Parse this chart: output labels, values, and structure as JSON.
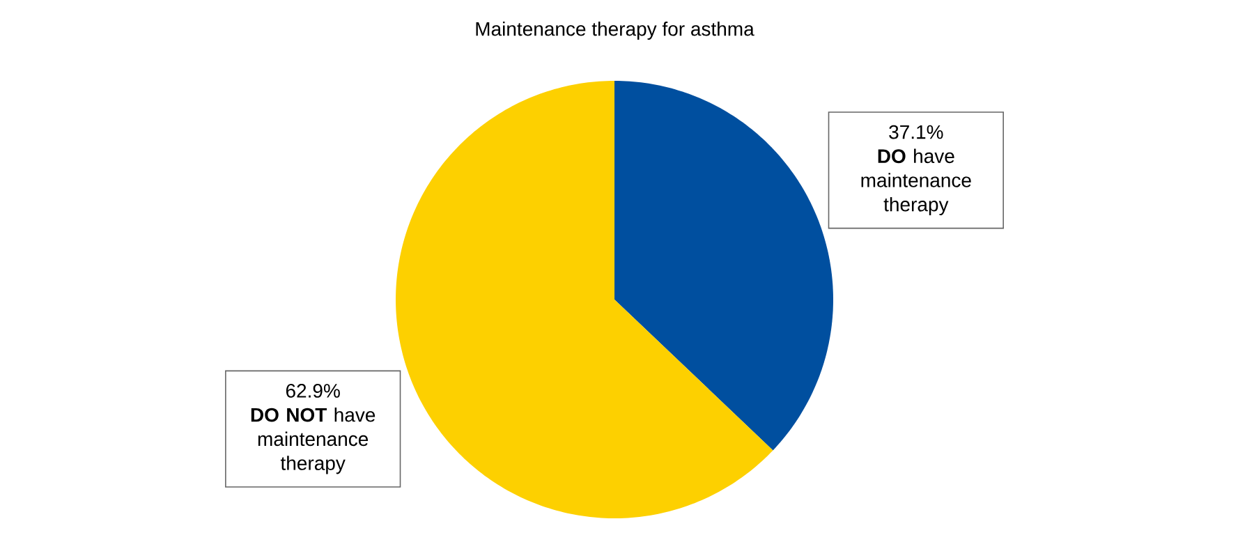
{
  "chart_data": {
    "type": "pie",
    "title": "Maintenance therapy for asthma",
    "categories": [
      "**DO** have maintenance therapy",
      "**DO NOT** have maintenance therapy"
    ],
    "values": [
      37.1,
      62.9
    ],
    "value_labels": [
      "37.1%",
      "62.9%"
    ],
    "colors": [
      "#004f9f",
      "#fdd000"
    ]
  }
}
